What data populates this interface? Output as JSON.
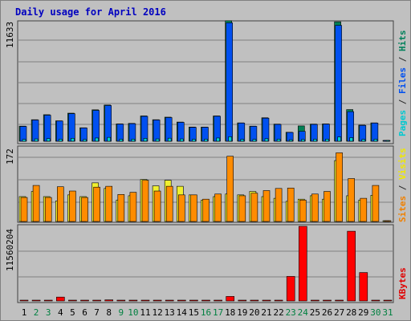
{
  "chart_data": {
    "type": "bar",
    "title": "Daily usage for April 2016",
    "categories": [
      "1",
      "2",
      "3",
      "4",
      "5",
      "6",
      "7",
      "8",
      "9",
      "10",
      "11",
      "12",
      "13",
      "14",
      "15",
      "16",
      "17",
      "18",
      "19",
      "20",
      "21",
      "22",
      "23",
      "24",
      "25",
      "26",
      "27",
      "28",
      "29",
      "30",
      "31"
    ],
    "weekend_days": [
      "2",
      "3",
      "9",
      "10",
      "16",
      "17",
      "23",
      "24",
      "30",
      "31"
    ],
    "panels": [
      {
        "name": "hits-files-pages",
        "ymax_label": "11633",
        "ymax": 11633,
        "axis_labels": [
          {
            "text": "Pages",
            "color": "#00c8d0"
          },
          {
            "text": " / ",
            "color": "#2a2a2a"
          },
          {
            "text": "Files",
            "color": "#0050f0"
          },
          {
            "text": " / ",
            "color": "#2a2a2a"
          },
          {
            "text": "Hits",
            "color": "#00805a"
          }
        ],
        "series": [
          {
            "name": "Hits",
            "color": "#008055",
            "values": [
              1480,
              2110,
              2600,
              2000,
              2750,
              1320,
              3080,
              3550,
              1700,
              1750,
              2480,
              2110,
              2360,
              1880,
              1390,
              1390,
              2480,
              11800,
              1800,
              1480,
              2300,
              1680,
              880,
              1500,
              1680,
              1700,
              11700,
              3100,
              1580,
              1800,
              0
            ]
          },
          {
            "name": "Files",
            "color": "#0050f0",
            "values": [
              1450,
              2080,
              2550,
              1980,
              2700,
              1300,
              3020,
              3500,
              1680,
              1720,
              2440,
              2080,
              2320,
              1850,
              1360,
              1370,
              2450,
              11600,
              1780,
              1460,
              2260,
              1650,
              860,
              970,
              1650,
              1680,
              11350,
              2900,
              1550,
              1780,
              0
            ]
          },
          {
            "name": "Pages",
            "color": "#00d0d0",
            "values": [
              180,
              230,
              260,
              210,
              290,
              170,
              320,
              380,
              200,
              210,
              280,
              230,
              300,
              230,
              190,
              200,
              320,
              440,
              190,
              180,
              250,
              210,
              150,
              170,
              200,
              210,
              420,
              350,
              180,
              200,
              0
            ]
          }
        ]
      },
      {
        "name": "visits-sites",
        "ymax_label": "172",
        "ymax": 172,
        "axis_labels": [
          {
            "text": "Sites",
            "color": "#f08000"
          },
          {
            "text": " / ",
            "color": "#2a2a2a"
          },
          {
            "text": "Visits",
            "color": "#f0e800"
          }
        ],
        "series": [
          {
            "name": "Visits",
            "color": "#f0f030",
            "values": [
              58,
              70,
              58,
              48,
              62,
              58,
              90,
              77,
              50,
              60,
              98,
              83,
              96,
              82,
              62,
              50,
              58,
              64,
              62,
              70,
              58,
              54,
              47,
              52,
              60,
              52,
              142,
              60,
              50,
              61,
              0
            ]
          },
          {
            "name": "Sites",
            "color": "#ff8c00",
            "values": [
              56,
              84,
              56,
              81,
              71,
              56,
              80,
              82,
              63,
              68,
              96,
              71,
              82,
              62,
              62,
              52,
              64,
              152,
              60,
              66,
              72,
              77,
              78,
              50,
              64,
              70,
              160,
              100,
              54,
              84,
              0
            ]
          }
        ]
      },
      {
        "name": "kbytes",
        "ymax_label": "11560204",
        "ymax": 11560204,
        "axis_labels": [
          {
            "text": "KBytes",
            "color": "#e00000"
          }
        ],
        "series": [
          {
            "name": "KBytes",
            "color": "#ff0000",
            "values": [
              60000,
              60000,
              60000,
              600000,
              60000,
              60000,
              60000,
              170000,
              60000,
              60000,
              60000,
              60000,
              60000,
              60000,
              60000,
              60000,
              60000,
              700000,
              60000,
              60000,
              60000,
              60000,
              3800000,
              11560204,
              60000,
              60000,
              60000,
              10800000,
              4400000,
              60000,
              60000
            ]
          }
        ]
      }
    ],
    "colors": {
      "background": "#c0c0c0",
      "border": "#808080",
      "title": "#0000c0",
      "weekday_label": "#000000",
      "weekend_label": "#008040",
      "gridline": "#808080"
    }
  }
}
